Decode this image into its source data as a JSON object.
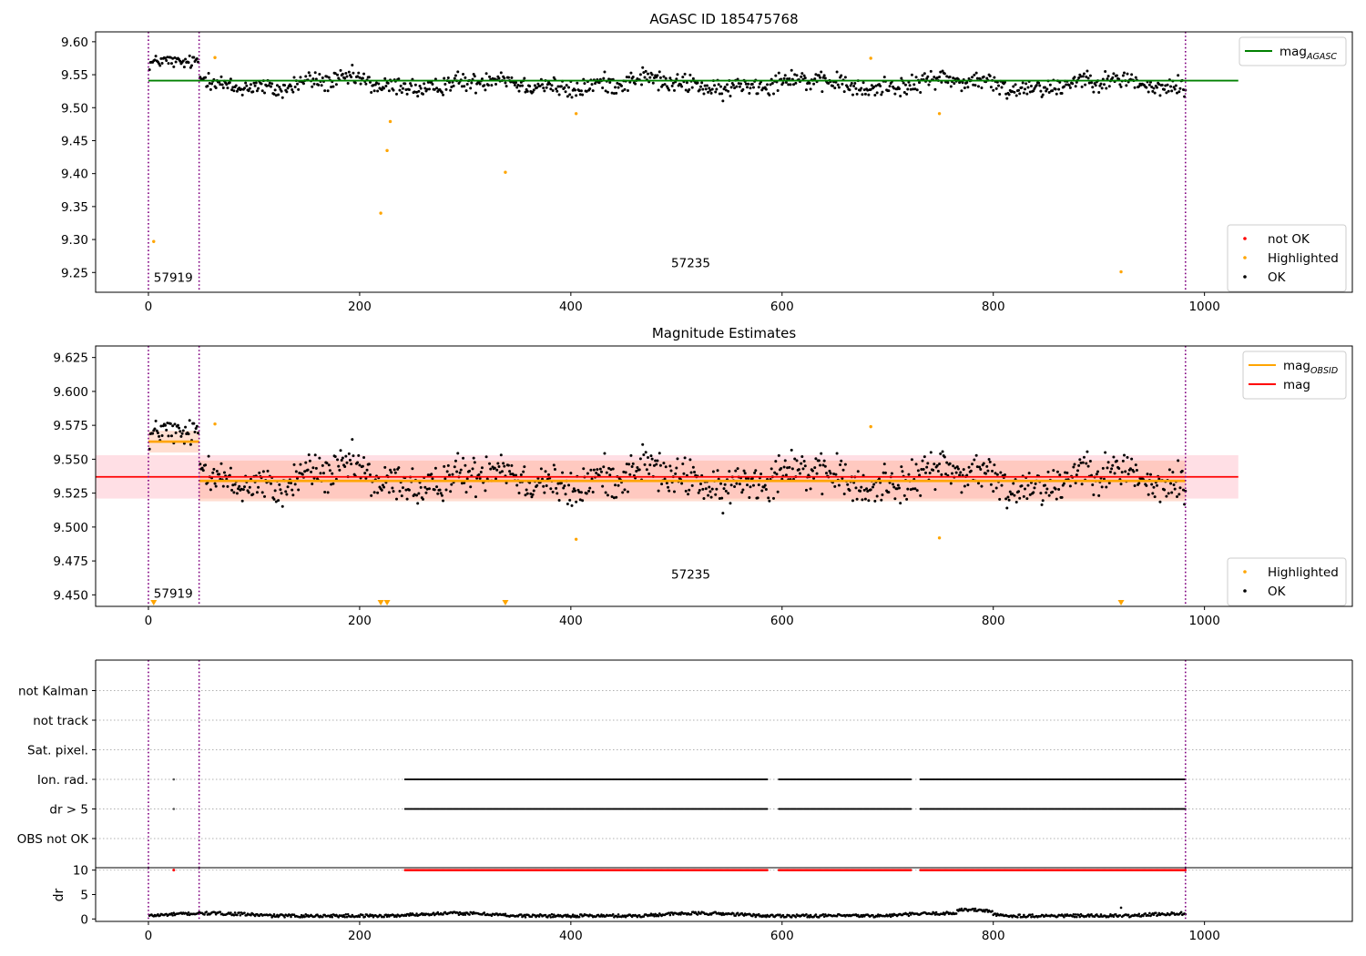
{
  "chart_data": [
    {
      "type": "scatter",
      "title": "AGASC ID 185475768",
      "xlim": [
        -50,
        1140
      ],
      "ylim": [
        9.22,
        9.615
      ],
      "xticks": [
        0,
        200,
        400,
        600,
        800,
        1000
      ],
      "yticks": [
        9.25,
        9.3,
        9.35,
        9.4,
        9.45,
        9.5,
        9.55,
        9.6
      ],
      "ytick_decimals": 2,
      "obs_boundaries": [
        0,
        48,
        982
      ],
      "obs_labels": [
        {
          "text": "57919",
          "x": 5,
          "y": 9.236
        },
        {
          "text": "57235",
          "x": 495,
          "y": 9.258
        }
      ],
      "lines": [
        {
          "label": "mag",
          "sub": "AGASC",
          "color": "#008000",
          "x0": 0,
          "x1": 1032,
          "y": 9.541
        }
      ],
      "highlighted": [
        [
          5,
          9.297
        ],
        [
          63,
          9.576
        ],
        [
          220,
          9.34
        ],
        [
          226,
          9.435
        ],
        [
          229,
          9.479
        ],
        [
          338,
          9.402
        ],
        [
          405,
          9.491
        ],
        [
          684,
          9.575
        ],
        [
          749,
          9.491
        ],
        [
          921,
          9.251
        ]
      ],
      "ok_segments": [
        {
          "x0": 1,
          "x1": 47,
          "center": 9.566,
          "spread": 0.011
        },
        {
          "x0": 49,
          "x1": 982,
          "center": 9.536,
          "spread": 0.016
        }
      ],
      "legends": [
        {
          "placement": "upper-right",
          "items": [
            {
              "label": "mag",
              "sub": "AGASC",
              "kind": "line",
              "color": "#008000"
            }
          ]
        },
        {
          "placement": "lower-right",
          "items": [
            {
              "label": "not OK",
              "kind": "dot",
              "color": "#ff0000"
            },
            {
              "label": "Highlighted",
              "kind": "dot",
              "color": "#ffa500"
            },
            {
              "label": "OK",
              "kind": "dot",
              "color": "#000000"
            }
          ]
        }
      ]
    },
    {
      "type": "scatter",
      "title": "Magnitude Estimates",
      "xlim": [
        -50,
        1140
      ],
      "ylim": [
        9.4415,
        9.6335
      ],
      "xticks": [
        0,
        200,
        400,
        600,
        800,
        1000
      ],
      "yticks": [
        9.45,
        9.475,
        9.5,
        9.525,
        9.55,
        9.575,
        9.6,
        9.625
      ],
      "ytick_decimals": 3,
      "obs_boundaries": [
        0,
        48,
        982
      ],
      "obs_labels": [
        {
          "text": "57919",
          "x": 5,
          "y": 9.448
        },
        {
          "text": "57235",
          "x": 495,
          "y": 9.462
        }
      ],
      "bands": [
        {
          "x0": -50,
          "x1": 1032,
          "y0": 9.521,
          "y1": 9.553,
          "color": "#ffc0cb",
          "opacity": 0.5
        },
        {
          "x0": 48,
          "x1": 982,
          "y0": 9.519,
          "y1": 9.549,
          "color": "#ffa07a",
          "opacity": 0.35
        },
        {
          "x0": 0,
          "x1": 48,
          "y0": 9.555,
          "y1": 9.571,
          "color": "#ffa07a",
          "opacity": 0.35
        }
      ],
      "lines": [
        {
          "label": "mag",
          "color": "#ff0000",
          "x0": -50,
          "x1": 1032,
          "y": 9.537
        },
        {
          "label": "mag",
          "sub": "OBSID",
          "color": "#ffa500",
          "x0": 48,
          "x1": 982,
          "y": 9.534
        },
        {
          "label": "mag",
          "sub": "OBSID",
          "color": "#ffa500",
          "x0": 0,
          "x1": 48,
          "y": 9.563
        }
      ],
      "highlighted": [
        [
          63,
          9.576
        ],
        [
          405,
          9.491
        ],
        [
          684,
          9.574
        ],
        [
          749,
          9.492
        ]
      ],
      "below_range": [
        5,
        220,
        226,
        338,
        921
      ],
      "ok_segments": [
        {
          "x0": 1,
          "x1": 47,
          "center": 9.566,
          "spread": 0.011
        },
        {
          "x0": 49,
          "x1": 982,
          "center": 9.536,
          "spread": 0.016
        }
      ],
      "legends": [
        {
          "placement": "upper-right",
          "items": [
            {
              "label": "mag",
              "sub": "OBSID",
              "kind": "line",
              "color": "#ffa500"
            },
            {
              "label": "mag",
              "kind": "line",
              "color": "#ff0000"
            }
          ]
        },
        {
          "placement": "lower-right",
          "items": [
            {
              "label": "Highlighted",
              "kind": "dot",
              "color": "#ffa500"
            },
            {
              "label": "OK",
              "kind": "dot",
              "color": "#000000"
            }
          ]
        }
      ]
    },
    {
      "type": "scatter",
      "title": "",
      "xlim": [
        -50,
        1140
      ],
      "categories": [
        "not Kalman",
        "not track",
        "Sat. pixel.",
        "Ion. rad.",
        "dr > 5",
        "OBS not OK"
      ],
      "flagged_points": [
        24
      ],
      "flagged_ranges": [
        [
          243,
          586
        ],
        [
          597,
          722
        ],
        [
          731,
          982
        ]
      ],
      "obs_boundaries": [
        0,
        48,
        982
      ]
    },
    {
      "type": "scatter",
      "title": "",
      "ylabel": "dr",
      "xlim": [
        -50,
        1140
      ],
      "ylim": [
        -0.5,
        10.5
      ],
      "xticks": [
        0,
        200,
        400,
        600,
        800,
        1000
      ],
      "yticks": [
        0,
        5,
        10
      ],
      "threshold": 10,
      "red_points": [
        24
      ],
      "red_ranges": [
        [
          243,
          586
        ],
        [
          597,
          722
        ],
        [
          731,
          982
        ]
      ],
      "obs_boundaries": [
        0,
        48,
        982
      ]
    }
  ]
}
